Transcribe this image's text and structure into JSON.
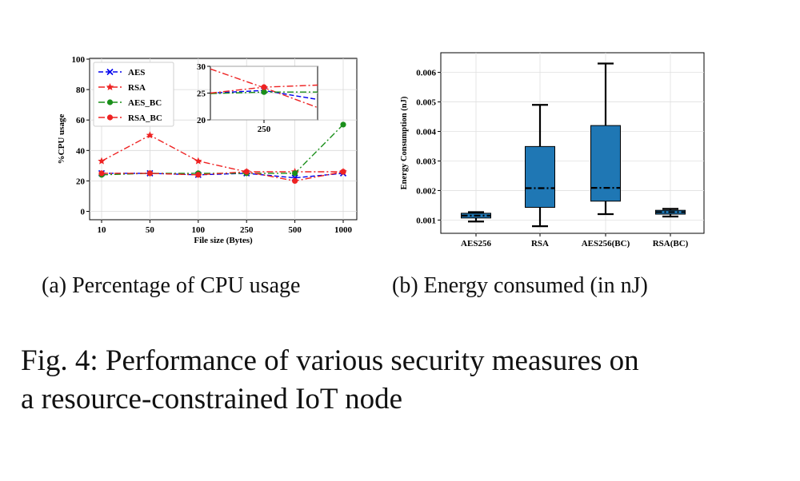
{
  "chart_data": [
    {
      "type": "line",
      "panel": "a",
      "xlabel": "File size (Bytes)",
      "ylabel": "%CPU usage",
      "x_categories": [
        "10",
        "50",
        "100",
        "250",
        "500",
        "1000"
      ],
      "y_ticks": [
        "0",
        "20",
        "40",
        "60",
        "80",
        "100"
      ],
      "ylim": [
        0,
        100
      ],
      "grid": true,
      "legend_position": "top-left",
      "series": [
        {
          "name": "AES",
          "color": "#0000ee",
          "dash": "6,3",
          "marker": "x",
          "values": [
            25,
            25,
            24,
            25,
            22,
            25
          ]
        },
        {
          "name": "RSA",
          "color": "#ee2222",
          "dash": "8,3,2,3",
          "marker": "star",
          "values": [
            33,
            50,
            33,
            26,
            26,
            26
          ]
        },
        {
          "name": "AES_BC",
          "color": "#1a8f1a",
          "dash": "8,3,2,3",
          "marker": "circle",
          "values": [
            24,
            25,
            25,
            25,
            25,
            57
          ]
        },
        {
          "name": "RSA_BC",
          "color": "#ee2222",
          "dash": "8,3,2,3",
          "marker": "circle",
          "values": [
            25,
            25,
            24,
            26,
            20,
            26
          ]
        }
      ],
      "inset": {
        "x_tick": "250",
        "y_ticks": [
          "20",
          "25",
          "30"
        ],
        "ylim": [
          20,
          30
        ],
        "series": [
          {
            "name": "AES",
            "values": [
              25.0,
              25.5,
              23.8
            ]
          },
          {
            "name": "RSA",
            "values": [
              29.5,
              26.0,
              22.3
            ]
          },
          {
            "name": "AES_BC",
            "values": [
              24.9,
              25.2,
              25.2
            ]
          },
          {
            "name": "RSA_BC",
            "values": [
              25.0,
              26.1,
              26.5
            ]
          }
        ]
      }
    },
    {
      "type": "box",
      "panel": "b",
      "ylabel": "Energy Consumption (nJ)",
      "categories": [
        "AES256",
        "RSA",
        "AES256(BC)",
        "RSA(BC)"
      ],
      "y_ticks": [
        "0.001",
        "0.002",
        "0.003",
        "0.004",
        "0.005",
        "0.006"
      ],
      "ylim": [
        0.0007,
        0.0066
      ],
      "box_color": "#1f77b4",
      "boxes": [
        {
          "label": "AES256",
          "min": 0.00095,
          "q1": 0.00107,
          "median": 0.00115,
          "q3": 0.00123,
          "max": 0.00127
        },
        {
          "label": "RSA",
          "min": 0.00079,
          "q1": 0.00143,
          "median": 0.00208,
          "q3": 0.00349,
          "max": 0.0049
        },
        {
          "label": "AES256(BC)",
          "min": 0.0012,
          "q1": 0.00164,
          "median": 0.00209,
          "q3": 0.0042,
          "max": 0.0063
        },
        {
          "label": "RSA(BC)",
          "min": 0.00112,
          "q1": 0.0012,
          "median": 0.00127,
          "q3": 0.00133,
          "max": 0.00138
        }
      ]
    }
  ],
  "captions": {
    "a": "(a) Percentage of CPU usage",
    "b": "(b) Energy consumed (in nJ)"
  },
  "figure_caption": {
    "line1": "Fig. 4: Performance of various security measures on",
    "line2": "a resource-constrained IoT node"
  }
}
